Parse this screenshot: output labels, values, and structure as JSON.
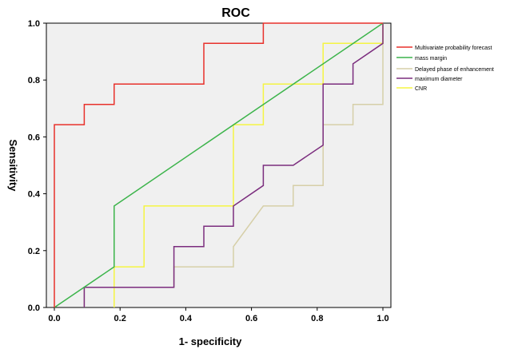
{
  "chart_data": {
    "type": "line",
    "title": "ROC",
    "xlabel": "1- specificity",
    "ylabel": "Sensitivity",
    "xlim": [
      0,
      1
    ],
    "ylim": [
      0,
      1
    ],
    "xticks": [
      "0.0",
      "0.2",
      "0.4",
      "0.6",
      "0.8",
      "1.0"
    ],
    "yticks": [
      "0.0",
      "0.2",
      "0.4",
      "0.6",
      "0.8",
      "1.0"
    ],
    "grid": false,
    "legend_position": "right",
    "background_color": "#f0f0f0",
    "series": [
      {
        "name": "Multivariate probability forecast",
        "color": "#e8312b",
        "x": [
          0,
          0,
          0,
          0.091,
          0.091,
          0.182,
          0.182,
          0.455,
          0.455,
          0.636,
          0.636,
          1.0
        ],
        "y": [
          0,
          0.643,
          0.643,
          0.643,
          0.714,
          0.714,
          0.786,
          0.786,
          0.929,
          0.929,
          1.0,
          1.0
        ]
      },
      {
        "name": "mass margin",
        "color": "#3cb44b",
        "x": [
          0,
          0.182,
          0.182,
          1.0
        ],
        "y": [
          0,
          0.143,
          0.357,
          1.0
        ]
      },
      {
        "name": "Delayed phase of enhancement",
        "color": "#d6cfa8",
        "x": [
          0.091,
          0.091,
          0.364,
          0.364,
          0.545,
          0.545,
          0.636,
          0.727,
          0.727,
          0.818,
          0.818,
          0.909,
          0.909,
          1.0,
          1.0
        ],
        "y": [
          0,
          0.071,
          0.071,
          0.143,
          0.143,
          0.214,
          0.357,
          0.357,
          0.429,
          0.429,
          0.643,
          0.643,
          0.714,
          0.714,
          1.0
        ]
      },
      {
        "name": "maximum diameter",
        "color": "#7b2d7e",
        "x": [
          0.091,
          0.091,
          0.364,
          0.364,
          0.455,
          0.455,
          0.545,
          0.545,
          0.636,
          0.636,
          0.727,
          0.818,
          0.818,
          0.909,
          0.909,
          1.0,
          1.0
        ],
        "y": [
          0,
          0.071,
          0.071,
          0.214,
          0.214,
          0.286,
          0.286,
          0.357,
          0.429,
          0.5,
          0.5,
          0.571,
          0.786,
          0.786,
          0.857,
          0.929,
          1.0
        ]
      },
      {
        "name": "CNR",
        "color": "#f5f542",
        "x": [
          0.182,
          0.182,
          0.273,
          0.273,
          0.545,
          0.545,
          0.636,
          0.636,
          0.818,
          0.818,
          1.0,
          1.0
        ],
        "y": [
          0,
          0.143,
          0.143,
          0.357,
          0.357,
          0.643,
          0.643,
          0.786,
          0.786,
          0.929,
          0.929,
          1.0
        ]
      }
    ]
  }
}
